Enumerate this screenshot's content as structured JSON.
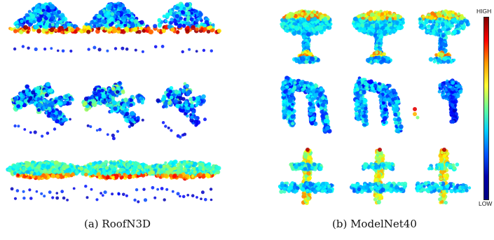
{
  "panels": [
    {
      "caption": "(a)  RoofN3D",
      "rows": [
        {
          "shape": "roof-gable",
          "variants": 3
        },
        {
          "shape": "roof-hip-diagonal",
          "variants": 3
        },
        {
          "shape": "roof-flat-mound",
          "variants": 3
        }
      ]
    },
    {
      "caption": "(b)  ModelNet40",
      "rows": [
        {
          "shape": "lamp",
          "variants": 3
        },
        {
          "shape": "chair",
          "variants": 3
        },
        {
          "shape": "airplane",
          "variants": 3
        }
      ]
    }
  ],
  "colorbar": {
    "high_label": "HIGH",
    "low_label": "LOW",
    "colors": [
      "#800000",
      "#ff0000",
      "#ff9900",
      "#ffff33",
      "#66ff99",
      "#00ccff",
      "#0055ff",
      "#0000aa",
      "#00007f"
    ]
  }
}
